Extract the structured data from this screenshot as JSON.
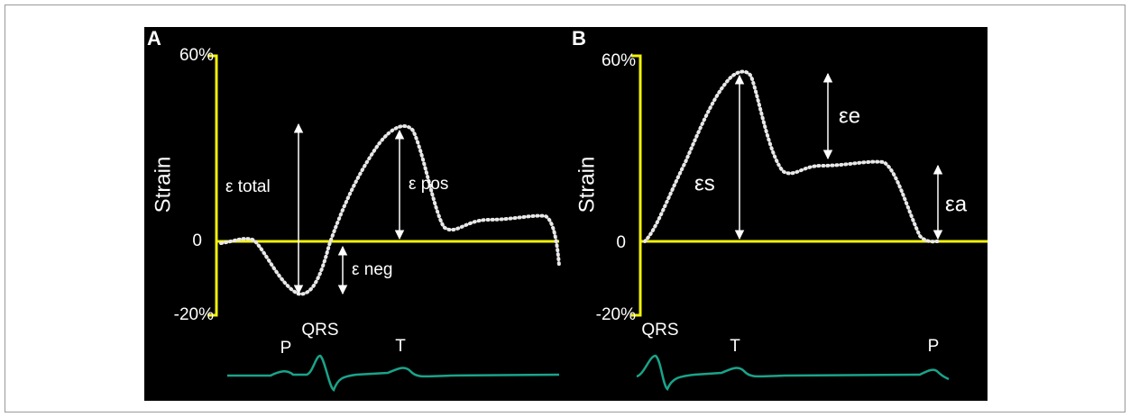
{
  "panels": [
    {
      "label": "A",
      "y_axis_label": "Strain",
      "ticks": [
        "60%",
        "0",
        "-20%"
      ],
      "annotations": [
        "ε total",
        "ε pos",
        "ε neg"
      ],
      "ecg_labels": [
        "P",
        "QRS",
        "T"
      ]
    },
    {
      "label": "B",
      "y_axis_label": "Strain",
      "ticks": [
        "60%",
        "0",
        "-20%"
      ],
      "annotations": [
        "εs",
        "εe",
        "εa"
      ],
      "ecg_labels": [
        "QRS",
        "T",
        "P"
      ]
    }
  ]
}
